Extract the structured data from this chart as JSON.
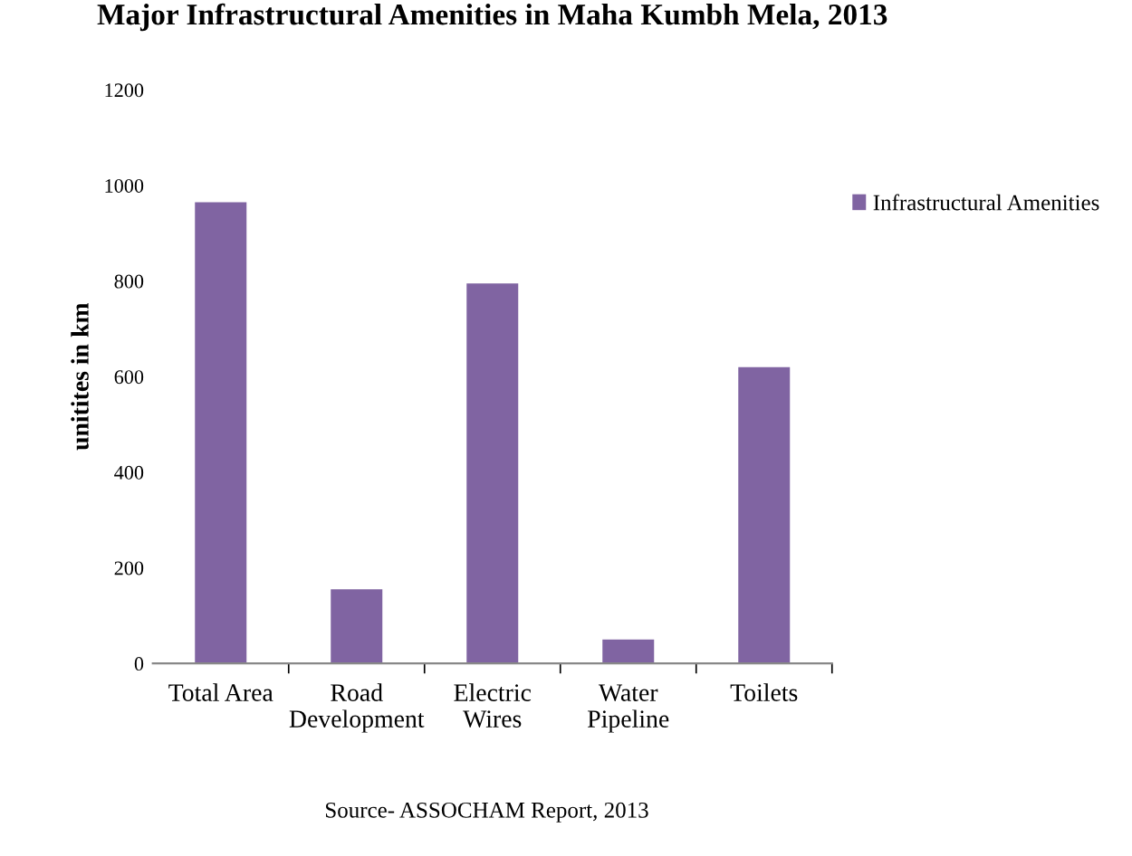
{
  "chart_data": {
    "type": "bar",
    "title": "Major Infrastructural Amenities in Maha Kumbh Mela, 2013",
    "ylabel": "unitites in km",
    "categories": [
      "Total Area",
      "Road\nDevelopment",
      "Electric\nWires",
      "Water\nPipeline",
      "Toilets"
    ],
    "series": [
      {
        "name": "Infrastructural Amenities",
        "color": "#8064a2",
        "values": [
          965,
          155,
          795,
          50,
          620
        ]
      }
    ],
    "ylim": [
      0,
      1200
    ],
    "yticks": [
      0,
      200,
      400,
      600,
      800,
      1000,
      1200
    ],
    "grid": false,
    "legend": "right",
    "annotations": [
      "Source- ASSOCHAM Report, 2013"
    ]
  }
}
